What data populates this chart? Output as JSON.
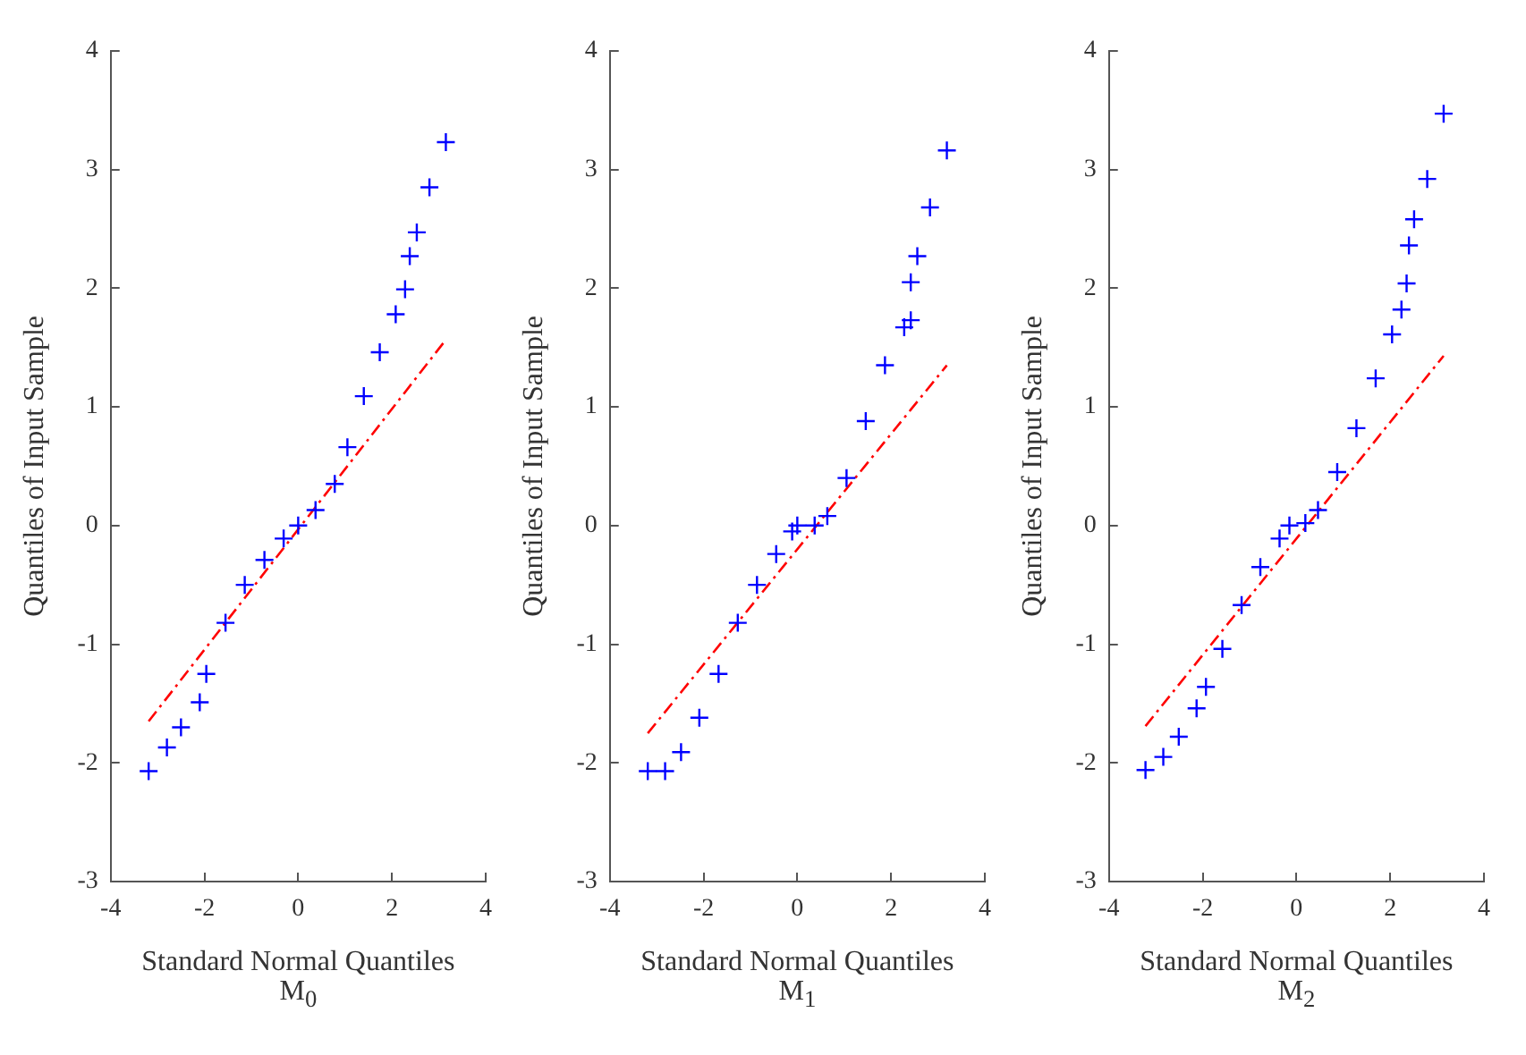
{
  "chart_data": [
    {
      "type": "scatter",
      "xlabel": "Standard Normal Quantiles",
      "ylabel": "Quantiles of Input Sample",
      "annotations": [
        "M$_{0}$"
      ],
      "xlim": [
        -4,
        4
      ],
      "ylim": [
        -3,
        4
      ],
      "xticks": [
        -4,
        -2,
        0,
        2,
        4
      ],
      "yticks": [
        -3,
        -2,
        -1,
        0,
        1,
        2,
        3,
        4
      ],
      "grid": false,
      "legend": false,
      "marker": "cross",
      "series": [
        {
          "color": "#0000ff",
          "x": [
            -3.19,
            -2.8,
            -2.5,
            -2.1,
            -1.96,
            -1.55,
            -1.14,
            -0.72,
            -0.31,
            0,
            0.37,
            0.78,
            1.05,
            1.4,
            1.74,
            2.08,
            2.28,
            2.38,
            2.53,
            2.8,
            3.15
          ],
          "values": [
            -2.07,
            -1.87,
            -1.7,
            -1.49,
            -1.25,
            -0.82,
            -0.5,
            -0.29,
            -0.11,
            0,
            0.13,
            0.35,
            0.66,
            1.09,
            1.46,
            1.78,
            1.99,
            2.27,
            2.47,
            2.85,
            3.23
          ]
        },
        {
          "type": "line",
          "color": "#ff0000",
          "line_style": "dashed",
          "marker": "none",
          "x": [
            -3.19,
            3.14
          ],
          "values": [
            -1.65,
            1.56
          ]
        }
      ]
    },
    {
      "type": "scatter",
      "xlabel": "Standard Normal Quantiles",
      "ylabel": "Quantiles of Input Sample",
      "annotations": [
        "M$_{1}$"
      ],
      "xlim": [
        -4,
        4
      ],
      "ylim": [
        -3,
        4
      ],
      "xticks": [
        -4,
        -2,
        0,
        2,
        4
      ],
      "yticks": [
        -3,
        -2,
        -1,
        0,
        1,
        2,
        3,
        4
      ],
      "grid": false,
      "legend": false,
      "marker": "cross",
      "series": [
        {
          "color": "#0000ff",
          "x": [
            -3.19,
            -2.82,
            -2.48,
            -2.09,
            -1.68,
            -1.27,
            -0.86,
            -0.45,
            -0.11,
            0,
            0.37,
            0.64,
            1.05,
            1.46,
            1.87,
            2.28,
            2.42,
            2.42,
            2.56,
            2.83,
            3.19
          ],
          "values": [
            -2.07,
            -2.07,
            -1.91,
            -1.62,
            -1.25,
            -0.82,
            -0.5,
            -0.24,
            -0.05,
            0,
            0,
            0.08,
            0.4,
            0.88,
            1.35,
            1.67,
            1.73,
            2.05,
            2.27,
            2.68,
            3.16
          ]
        },
        {
          "type": "line",
          "color": "#ff0000",
          "line_style": "dashed",
          "marker": "none",
          "x": [
            -3.19,
            3.19
          ],
          "values": [
            -1.75,
            1.35
          ]
        }
      ]
    },
    {
      "type": "scatter",
      "xlabel": "Standard Normal Quantiles",
      "ylabel": "Quantiles of Input Sample",
      "annotations": [
        "M$_{2}$"
      ],
      "xlim": [
        -4,
        4
      ],
      "ylim": [
        -3,
        4
      ],
      "xticks": [
        -4,
        -2,
        0,
        2,
        4
      ],
      "yticks": [
        -3,
        -2,
        -1,
        0,
        1,
        2,
        3,
        4
      ],
      "grid": false,
      "legend": false,
      "marker": "cross",
      "series": [
        {
          "color": "#0000ff",
          "x": [
            -3.22,
            -2.84,
            -2.51,
            -2.13,
            -1.93,
            -1.58,
            -1.17,
            -0.77,
            -0.36,
            -0.15,
            0.19,
            0.46,
            0.87,
            1.28,
            1.69,
            2.04,
            2.24,
            2.35,
            2.4,
            2.51,
            2.79,
            3.14
          ],
          "values": [
            -2.06,
            -1.95,
            -1.78,
            -1.54,
            -1.36,
            -1.04,
            -0.67,
            -0.35,
            -0.11,
            0,
            0.02,
            0.13,
            0.45,
            0.82,
            1.24,
            1.61,
            1.82,
            2.04,
            2.36,
            2.58,
            2.92,
            3.47
          ]
        },
        {
          "type": "line",
          "color": "#ff0000",
          "line_style": "dashed",
          "marker": "none",
          "x": [
            -3.22,
            3.14
          ],
          "values": [
            -1.69,
            1.43
          ]
        }
      ]
    }
  ]
}
